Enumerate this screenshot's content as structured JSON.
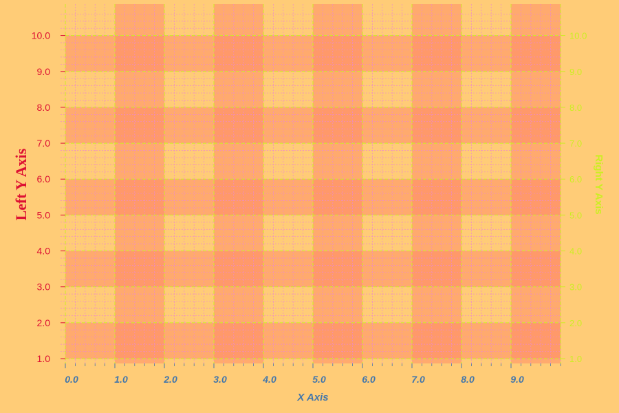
{
  "chart_data": {
    "type": "heatmap",
    "title": "",
    "xlabel": "X Axis",
    "ylabel": "Left Y Axis",
    "y2label": "Right Y Axis",
    "xlim": [
      0,
      10
    ],
    "ylim": [
      1,
      10
    ],
    "x_ticks": [
      "0.0",
      "1.0",
      "2.0",
      "3.0",
      "4.0",
      "5.0",
      "6.0",
      "7.0",
      "8.0",
      "9.0"
    ],
    "y_ticks": [
      "1.0",
      "2.0",
      "3.0",
      "4.0",
      "5.0",
      "6.0",
      "7.0",
      "8.0",
      "9.0",
      "10.0"
    ],
    "y2_ticks": [
      "1.0",
      "2.0",
      "3.0",
      "4.0",
      "5.0",
      "6.0",
      "7.0",
      "8.0",
      "9.0",
      "10.0"
    ],
    "grid": true,
    "bands": {
      "vertical": [
        [
          1,
          2
        ],
        [
          3,
          4
        ],
        [
          5,
          6
        ],
        [
          7,
          8
        ],
        [
          9,
          10
        ]
      ],
      "horizontal": [
        [
          1,
          2
        ],
        [
          3,
          4
        ],
        [
          5,
          6
        ],
        [
          7,
          8
        ],
        [
          9,
          10
        ]
      ]
    },
    "colors": {
      "background": "#ffcc77",
      "band": "#ff8866",
      "left_axis": "#dd1133",
      "right_axis": "#ccee22",
      "x_axis": "#4477aa",
      "major_grid": "#ccee22",
      "minor_grid": "#ee88cc"
    }
  }
}
